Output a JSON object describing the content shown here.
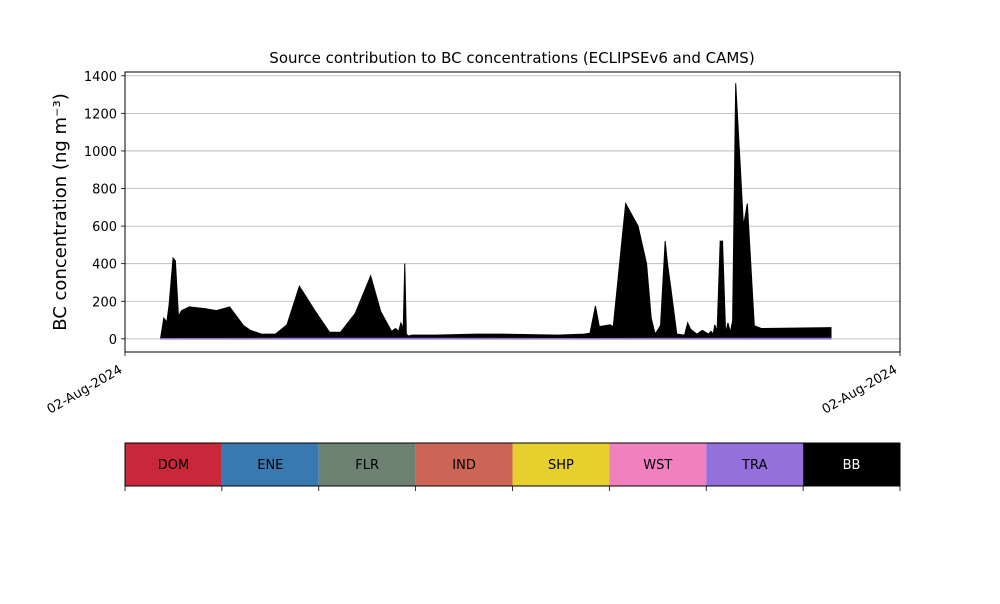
{
  "chart_data": {
    "type": "area",
    "title": "Source contribution to BC concentrations (ECLIPSEv6 and CAMS)",
    "ylabel": "BC concentration (ng m⁻³)",
    "xlabel": "",
    "ylim": [
      -70,
      1420
    ],
    "yticks": [
      0,
      200,
      400,
      600,
      800,
      1000,
      1200,
      1400
    ],
    "xlim": [
      0,
      1
    ],
    "xticks": [
      {
        "value": 0,
        "label": "02-Aug-2024"
      },
      {
        "value": 1,
        "label": "02-Aug-2024"
      }
    ],
    "grid": "horizontal",
    "series": [
      {
        "name": "BB",
        "color": "#000000",
        "x": [
          0.046,
          0.05,
          0.054,
          0.057,
          0.062,
          0.065,
          0.069,
          0.073,
          0.083,
          0.104,
          0.118,
          0.135,
          0.153,
          0.162,
          0.176,
          0.194,
          0.209,
          0.225,
          0.245,
          0.264,
          0.278,
          0.297,
          0.317,
          0.33,
          0.344,
          0.349,
          0.353,
          0.356,
          0.359,
          0.361,
          0.363,
          0.364,
          0.366,
          0.37,
          0.381,
          0.4,
          0.453,
          0.488,
          0.559,
          0.592,
          0.6,
          0.607,
          0.612,
          0.626,
          0.63,
          0.646,
          0.662,
          0.673,
          0.679,
          0.684,
          0.691,
          0.697,
          0.7,
          0.704,
          0.712,
          0.722,
          0.726,
          0.73,
          0.738,
          0.745,
          0.753,
          0.756,
          0.759,
          0.761,
          0.764,
          0.768,
          0.771,
          0.775,
          0.778,
          0.781,
          0.784,
          0.788,
          0.794,
          0.798,
          0.803,
          0.812,
          0.821,
          0.911
        ],
        "values": [
          5,
          110,
          90,
          185,
          430,
          415,
          120,
          150,
          170,
          160,
          150,
          170,
          70,
          45,
          25,
          25,
          75,
          280,
          150,
          35,
          35,
          135,
          335,
          145,
          40,
          55,
          40,
          85,
          55,
          400,
          30,
          20,
          15,
          20,
          20,
          20,
          25,
          25,
          20,
          25,
          30,
          175,
          65,
          75,
          65,
          720,
          600,
          400,
          110,
          25,
          70,
          520,
          400,
          280,
          25,
          20,
          85,
          50,
          25,
          45,
          25,
          40,
          25,
          75,
          40,
          520,
          520,
          30,
          85,
          35,
          95,
          1360,
          910,
          600,
          720,
          70,
          55,
          60
        ]
      },
      {
        "name": "TRA",
        "color": "#9370db",
        "x": [
          0.046,
          0.2,
          0.4,
          0.6,
          0.8,
          0.911
        ],
        "values": [
          2,
          3,
          3,
          2,
          3,
          3
        ]
      }
    ],
    "legend": {
      "placement": "bottom",
      "items": [
        {
          "name": "DOM",
          "color": "#c8283a",
          "text_color": "#000000"
        },
        {
          "name": "ENE",
          "color": "#3a78b0",
          "text_color": "#000000"
        },
        {
          "name": "FLR",
          "color": "#6e8070",
          "text_color": "#000000"
        },
        {
          "name": "IND",
          "color": "#cd6556",
          "text_color": "#000000"
        },
        {
          "name": "SHP",
          "color": "#e6d02e",
          "text_color": "#000000"
        },
        {
          "name": "WST",
          "color": "#f080c0",
          "text_color": "#000000"
        },
        {
          "name": "TRA",
          "color": "#9370db",
          "text_color": "#000000"
        },
        {
          "name": "BB",
          "color": "#000000",
          "text_color": "#ffffff"
        }
      ]
    }
  }
}
